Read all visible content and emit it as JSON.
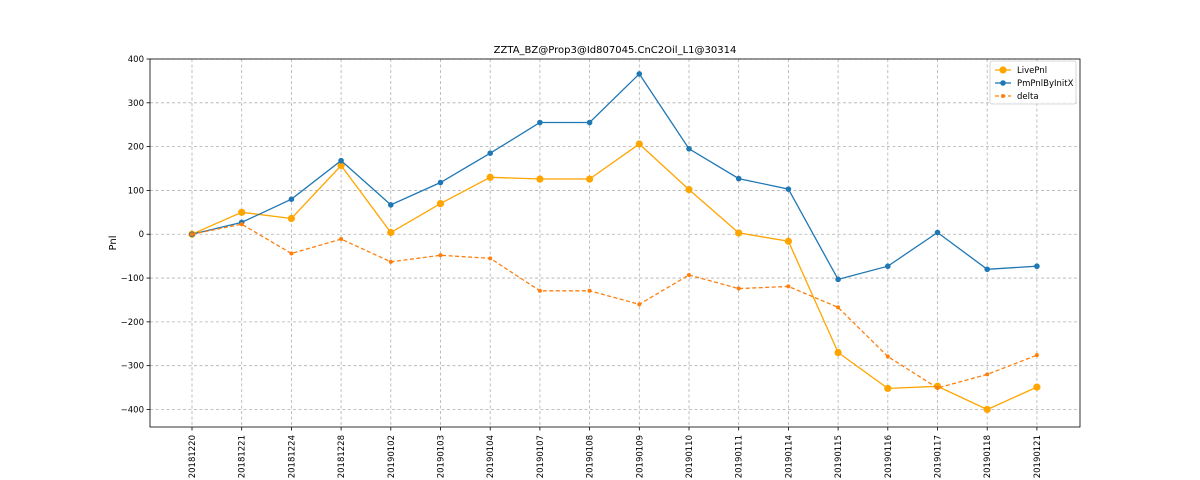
{
  "chart_data": {
    "type": "line",
    "title": "ZZTA_BZ@Prop3@Id807045.CnC2Oil_L1@30314",
    "xlabel": "",
    "ylabel": "Pnl",
    "ylim": [
      -440,
      400
    ],
    "yticks": [
      -400,
      -300,
      -200,
      -100,
      0,
      100,
      200,
      300,
      400
    ],
    "grid": true,
    "legend_position": "top-right",
    "categories": [
      "20181220",
      "20181221",
      "20181224",
      "20181228",
      "20190102",
      "20190103",
      "20190104",
      "20190107",
      "20190108",
      "20190109",
      "20190110",
      "20190111",
      "20190114",
      "20190115",
      "20190116",
      "20190117",
      "20190118",
      "20190121"
    ],
    "series": [
      {
        "name": "LivePnl",
        "color": "#ffa500",
        "style": "solid",
        "marker_size": "large",
        "values": [
          0,
          50,
          36,
          157,
          4,
          70,
          130,
          126,
          126,
          206,
          102,
          3,
          -16,
          -270,
          -352,
          -347,
          -400,
          -349
        ]
      },
      {
        "name": "PmPnlByInitX",
        "color": "#1f77b4",
        "style": "solid",
        "marker_size": "medium",
        "values": [
          0,
          27,
          80,
          168,
          67,
          118,
          185,
          255,
          255,
          366,
          195,
          127,
          103,
          -103,
          -73,
          4,
          -80,
          -73
        ]
      },
      {
        "name": "delta",
        "color": "#ff7f0e",
        "style": "dashed",
        "marker_size": "small",
        "values": [
          0,
          23,
          -44,
          -11,
          -63,
          -48,
          -55,
          -129,
          -129,
          -160,
          -93,
          -124,
          -119,
          -167,
          -279,
          -351,
          -320,
          -276
        ]
      }
    ]
  }
}
